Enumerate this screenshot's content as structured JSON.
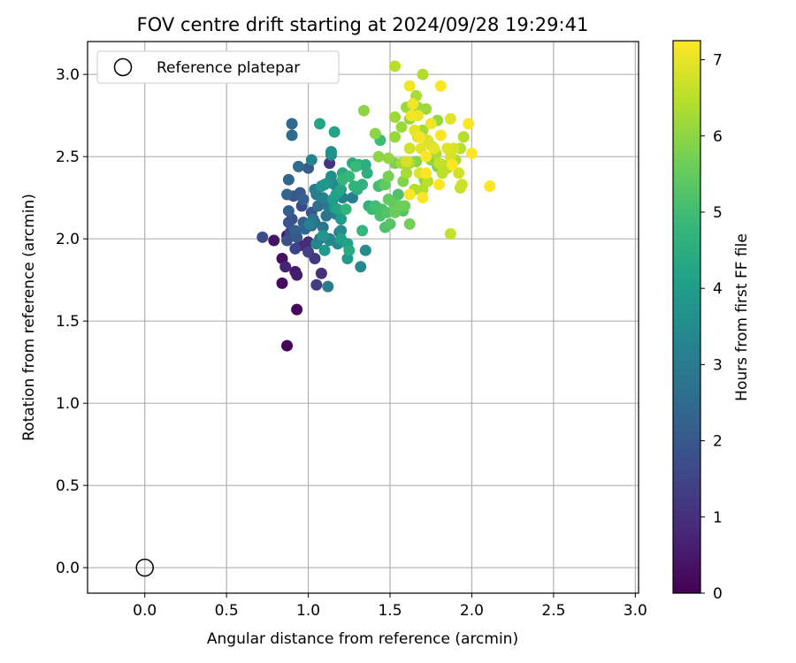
{
  "chart_data": {
    "type": "scatter",
    "title": "FOV centre drift starting at 2024/09/28 19:29:41",
    "xlabel": "Angular distance from reference (arcmin)",
    "ylabel": "Rotation from reference (arcmin)",
    "xlim": [
      -0.35,
      3.02
    ],
    "ylim": [
      -0.155,
      3.2
    ],
    "xticks": [
      0.0,
      0.5,
      1.0,
      1.5,
      2.0,
      2.5,
      3.0
    ],
    "xtick_labels": [
      "0.0",
      "0.5",
      "1.0",
      "1.5",
      "2.0",
      "2.5",
      "3.0"
    ],
    "yticks": [
      0.0,
      0.5,
      1.0,
      1.5,
      2.0,
      2.5,
      3.0
    ],
    "ytick_labels": [
      "0.0",
      "0.5",
      "1.0",
      "1.5",
      "2.0",
      "2.5",
      "3.0"
    ],
    "grid": true,
    "legend": {
      "placement": "top-left",
      "entries": [
        "Reference platepar"
      ]
    },
    "reference_point": {
      "x": 0.0,
      "y": 0.0,
      "label": "Reference platepar",
      "marker": "open-circle"
    },
    "colorbar": {
      "label": "Hours from first FF file",
      "colormap": "viridis",
      "min": 0,
      "max": 7.25,
      "ticks": [
        0,
        1,
        2,
        3,
        4,
        5,
        6,
        7
      ],
      "tick_labels": [
        "0",
        "1",
        "2",
        "3",
        "4",
        "5",
        "6",
        "7"
      ],
      "stops": [
        "#440154",
        "#482878",
        "#3e4989",
        "#31688e",
        "#26828e",
        "#1f9e89",
        "#35b779",
        "#6ece58",
        "#b5de2b",
        "#fde725"
      ]
    },
    "points": [
      [
        0.87,
        1.35,
        0.05
      ],
      [
        0.93,
        1.57,
        0.15
      ],
      [
        0.84,
        1.73,
        0.2
      ],
      [
        0.84,
        1.88,
        0.3
      ],
      [
        0.79,
        1.99,
        0.4
      ],
      [
        0.87,
        2.02,
        0.45
      ],
      [
        0.92,
        1.8,
        0.5
      ],
      [
        0.93,
        1.78,
        0.55
      ],
      [
        0.86,
        1.83,
        0.7
      ],
      [
        0.95,
        1.96,
        0.8
      ],
      [
        1.0,
        1.98,
        0.9
      ],
      [
        1.08,
        1.79,
        1.0
      ],
      [
        1.13,
        2.46,
        1.1
      ],
      [
        1.04,
        1.88,
        1.2
      ],
      [
        1.05,
        1.72,
        1.3
      ],
      [
        1.0,
        1.92,
        1.4
      ],
      [
        0.92,
        1.94,
        1.5
      ],
      [
        0.96,
        2.2,
        1.6
      ],
      [
        0.89,
        2.04,
        1.65
      ],
      [
        0.72,
        2.01,
        1.7
      ],
      [
        0.87,
        1.99,
        1.8
      ],
      [
        0.9,
        2.12,
        1.85
      ],
      [
        0.88,
        2.1,
        1.9
      ],
      [
        0.91,
        2.26,
        1.95
      ],
      [
        1.02,
        2.16,
        2.0
      ],
      [
        0.95,
        2.28,
        2.05
      ],
      [
        1.0,
        2.43,
        2.1
      ],
      [
        0.92,
        2.05,
        2.15
      ],
      [
        0.88,
        2.17,
        2.2
      ],
      [
        0.97,
        2.24,
        2.25
      ],
      [
        0.87,
        2.27,
        2.3
      ],
      [
        0.88,
        2.36,
        2.35
      ],
      [
        0.98,
        2.06,
        2.4
      ],
      [
        0.9,
        2.7,
        2.45
      ],
      [
        0.9,
        2.63,
        2.5
      ],
      [
        0.94,
        2.44,
        2.55
      ],
      [
        1.04,
        2.1,
        2.6
      ],
      [
        1.07,
        2.0,
        2.7
      ],
      [
        1.03,
        2.12,
        2.75
      ],
      [
        1.09,
        2.07,
        2.8
      ],
      [
        1.13,
        2.0,
        2.85
      ],
      [
        1.05,
        2.27,
        2.9
      ],
      [
        1.12,
        2.2,
        2.95
      ],
      [
        1.12,
        1.71,
        3.0
      ],
      [
        1.17,
        2.15,
        3.0
      ],
      [
        1.27,
        2.25,
        3.05
      ],
      [
        1.04,
        2.3,
        3.1
      ],
      [
        1.09,
        2.25,
        3.15
      ],
      [
        1.01,
        2.09,
        3.2
      ],
      [
        1.02,
        2.48,
        3.25
      ],
      [
        1.05,
        1.97,
        3.3
      ],
      [
        1.13,
        1.99,
        3.35
      ],
      [
        1.18,
        1.97,
        3.4
      ],
      [
        1.32,
        1.83,
        3.45
      ],
      [
        1.2,
        2.05,
        3.5
      ],
      [
        1.35,
        1.93,
        3.55
      ],
      [
        1.14,
        2.51,
        3.6
      ],
      [
        1.14,
        2.53,
        3.65
      ],
      [
        1.12,
        2.34,
        3.7
      ],
      [
        1.08,
        2.32,
        3.75
      ],
      [
        1.09,
        2.02,
        3.8
      ],
      [
        1.16,
        2.19,
        3.85
      ],
      [
        1.1,
        1.93,
        3.9
      ],
      [
        1.24,
        1.88,
        3.95
      ],
      [
        1.2,
        2.12,
        4.0
      ],
      [
        1.17,
        2.27,
        4.05
      ],
      [
        1.2,
        2.0,
        4.1
      ],
      [
        1.24,
        1.97,
        4.15
      ],
      [
        1.16,
        2.65,
        4.2
      ],
      [
        1.07,
        2.7,
        4.25
      ],
      [
        1.2,
        2.3,
        4.3
      ],
      [
        1.21,
        2.4,
        4.35
      ],
      [
        1.27,
        2.46,
        4.4
      ],
      [
        1.31,
        2.45,
        4.45
      ],
      [
        1.35,
        2.45,
        4.5
      ],
      [
        1.36,
        2.4,
        4.55
      ],
      [
        1.37,
        2.2,
        4.6
      ],
      [
        1.33,
        2.33,
        4.65
      ],
      [
        1.28,
        2.32,
        4.7
      ],
      [
        1.23,
        2.18,
        4.75
      ],
      [
        1.21,
        2.36,
        4.8
      ],
      [
        1.25,
        2.38,
        4.85
      ],
      [
        1.29,
        2.44,
        4.9
      ],
      [
        1.44,
        2.6,
        4.95
      ],
      [
        1.43,
        2.32,
        5.0
      ],
      [
        1.41,
        2.2,
        5.05
      ],
      [
        1.45,
        2.18,
        5.1
      ],
      [
        1.44,
        2.14,
        5.15
      ],
      [
        1.47,
        2.07,
        5.2
      ],
      [
        1.48,
        2.16,
        5.25
      ],
      [
        1.5,
        2.09,
        5.3
      ],
      [
        1.52,
        2.22,
        5.35
      ],
      [
        1.52,
        2.22,
        5.4
      ],
      [
        1.47,
        2.33,
        5.45
      ],
      [
        1.49,
        2.24,
        5.5
      ],
      [
        1.53,
        2.16,
        5.55
      ],
      [
        1.56,
        2.2,
        5.6
      ],
      [
        1.59,
        2.2,
        5.65
      ],
      [
        1.62,
        2.09,
        5.7
      ],
      [
        1.49,
        2.38,
        5.75
      ],
      [
        1.53,
        2.46,
        5.8
      ],
      [
        1.58,
        2.35,
        5.85
      ],
      [
        1.6,
        2.4,
        5.9
      ],
      [
        1.41,
        2.64,
        5.95
      ],
      [
        1.34,
        2.78,
        6.0
      ],
      [
        1.43,
        2.5,
        6.0
      ],
      [
        1.49,
        2.49,
        6.05
      ],
      [
        1.53,
        2.62,
        6.1
      ],
      [
        1.57,
        2.68,
        6.15
      ],
      [
        1.53,
        2.74,
        6.2
      ],
      [
        1.57,
        2.46,
        6.25
      ],
      [
        1.6,
        2.4,
        6.3
      ],
      [
        1.62,
        2.46,
        6.35
      ],
      [
        1.65,
        2.3,
        6.4
      ],
      [
        1.7,
        2.3,
        6.45
      ],
      [
        1.73,
        2.35,
        6.5
      ],
      [
        1.82,
        2.4,
        6.55
      ],
      [
        1.87,
        2.03,
        6.6
      ],
      [
        1.93,
        2.31,
        6.65
      ],
      [
        1.94,
        2.33,
        6.7
      ],
      [
        1.92,
        2.4,
        6.75
      ],
      [
        1.87,
        2.5,
        6.8
      ],
      [
        1.89,
        2.55,
        6.85
      ],
      [
        1.85,
        2.55,
        6.9
      ],
      [
        1.87,
        2.73,
        6.95
      ],
      [
        1.77,
        2.55,
        7.0
      ],
      [
        1.67,
        2.75,
        7.05
      ],
      [
        1.62,
        2.93,
        7.1
      ],
      [
        1.64,
        2.82,
        7.1
      ],
      [
        1.63,
        2.75,
        7.15
      ],
      [
        1.68,
        2.62,
        7.15
      ],
      [
        1.72,
        2.5,
        7.2
      ],
      [
        1.81,
        2.63,
        7.2
      ],
      [
        1.88,
        2.45,
        7.2
      ],
      [
        1.98,
        2.7,
        7.2
      ],
      [
        2.0,
        2.52,
        7.25
      ],
      [
        2.11,
        2.32,
        7.25
      ],
      [
        1.8,
        2.33,
        7.25
      ],
      [
        1.7,
        2.25,
        7.25
      ],
      [
        1.62,
        2.27,
        7.25
      ],
      [
        1.72,
        2.4,
        7.2
      ],
      [
        1.81,
        2.93,
        7.2
      ],
      [
        1.75,
        2.7,
        7.1
      ],
      [
        1.65,
        2.66,
        7.0
      ],
      [
        1.69,
        2.55,
        6.95
      ],
      [
        1.73,
        2.6,
        6.9
      ],
      [
        1.68,
        2.4,
        6.85
      ],
      [
        1.6,
        2.47,
        6.8
      ],
      [
        1.62,
        2.55,
        6.75
      ],
      [
        1.67,
        2.62,
        6.7
      ],
      [
        1.76,
        2.56,
        6.65
      ],
      [
        1.8,
        2.46,
        6.6
      ],
      [
        1.85,
        2.43,
        6.55
      ],
      [
        1.93,
        2.55,
        6.5
      ],
      [
        1.95,
        2.62,
        6.45
      ],
      [
        1.9,
        2.48,
        6.4
      ],
      [
        1.82,
        2.45,
        6.35
      ],
      [
        1.78,
        2.52,
        6.3
      ],
      [
        1.7,
        2.66,
        6.25
      ],
      [
        1.67,
        2.8,
        6.2
      ],
      [
        1.6,
        2.8,
        6.15
      ],
      [
        1.62,
        2.73,
        6.1
      ],
      [
        1.53,
        3.05,
        6.5
      ],
      [
        1.7,
        3.0,
        6.4
      ],
      [
        1.66,
        2.87,
        6.3
      ],
      [
        1.72,
        2.79,
        6.2
      ],
      [
        1.79,
        2.72,
        6.1
      ],
      [
        1.75,
        2.48,
        6.0
      ],
      [
        1.71,
        2.36,
        5.95
      ],
      [
        1.66,
        2.47,
        5.9
      ],
      [
        1.79,
        2.44,
        5.85
      ],
      [
        1.58,
        2.17,
        5.3
      ],
      [
        1.55,
        2.27,
        5.2
      ],
      [
        1.45,
        2.33,
        5.1
      ],
      [
        1.39,
        2.18,
        4.9
      ],
      [
        1.33,
        2.05,
        4.8
      ],
      [
        1.3,
        2.3,
        4.6
      ],
      [
        1.25,
        1.93,
        4.4
      ],
      [
        1.18,
        2.18,
        4.2
      ],
      [
        1.15,
        2.24,
        4.0
      ],
      [
        1.1,
        2.33,
        3.8
      ],
      [
        1.14,
        2.38,
        3.6
      ],
      [
        1.16,
        2.33,
        3.4
      ],
      [
        1.21,
        2.25,
        3.2
      ],
      [
        1.19,
        2.04,
        3.0
      ],
      [
        1.11,
        2.14,
        2.8
      ],
      [
        1.06,
        2.2,
        2.6
      ],
      [
        1.02,
        2.08,
        2.4
      ],
      [
        0.97,
        2.1,
        2.2
      ],
      [
        0.93,
        2.01,
        2.0
      ]
    ]
  }
}
